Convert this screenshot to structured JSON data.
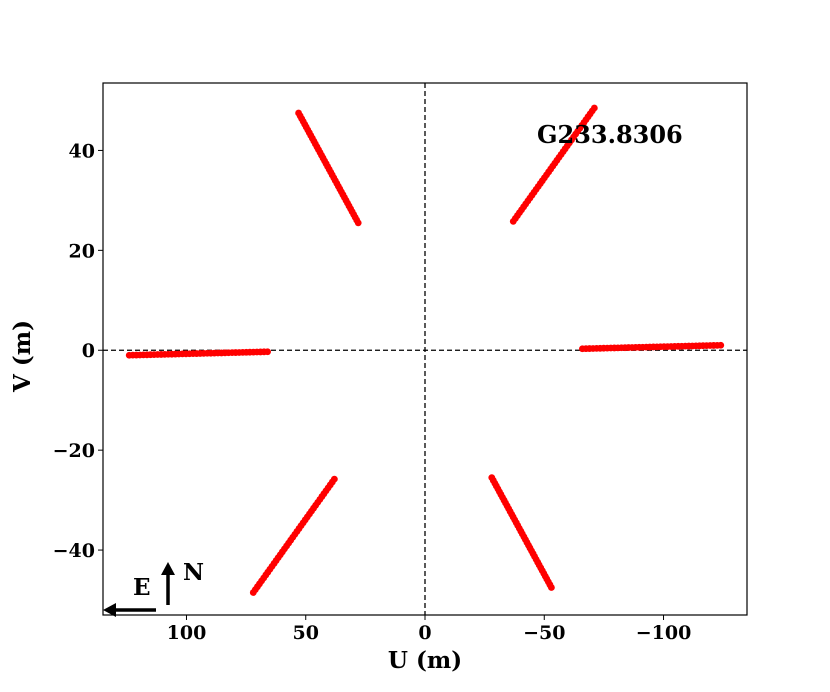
{
  "chart_data": {
    "type": "scatter",
    "title": "",
    "annotation": "G233.8306",
    "xlabel": "U (m)",
    "ylabel": "V (m)",
    "xlim": [
      135,
      -135
    ],
    "ylim": [
      -53,
      53.5
    ],
    "x_ticks": [
      {
        "value": 100,
        "label": "100"
      },
      {
        "value": 50,
        "label": "50"
      },
      {
        "value": 0,
        "label": "0"
      },
      {
        "value": -50,
        "label": "−50"
      },
      {
        "value": -100,
        "label": "−100"
      }
    ],
    "y_ticks": [
      {
        "value": 40,
        "label": "40"
      },
      {
        "value": 20,
        "label": "20"
      },
      {
        "value": 0,
        "label": "0"
      },
      {
        "value": -20,
        "label": "−20"
      },
      {
        "value": -40,
        "label": "−40"
      }
    ],
    "grid": false,
    "reference_lines": {
      "x": 0,
      "y": 0,
      "style": "dashed",
      "color": "#000000"
    },
    "marker_color": "#ff0000",
    "compass": {
      "east_label": "E",
      "north_label": "N"
    },
    "series": [
      {
        "start": [
          53,
          47.5
        ],
        "end": [
          28,
          25.5
        ],
        "points": 40
      },
      {
        "start": [
          -71,
          48.5
        ],
        "end": [
          -37,
          25.8
        ],
        "points": 40
      },
      {
        "start": [
          124,
          -1.0
        ],
        "end": [
          66,
          -0.3
        ],
        "points": 40
      },
      {
        "start": [
          -66,
          0.3
        ],
        "end": [
          -124,
          1.0
        ],
        "points": 40
      },
      {
        "start": [
          72,
          -48.5
        ],
        "end": [
          38,
          -25.8
        ],
        "points": 40
      },
      {
        "start": [
          -28,
          -25.5
        ],
        "end": [
          -53,
          -47.5
        ],
        "points": 40
      }
    ]
  }
}
